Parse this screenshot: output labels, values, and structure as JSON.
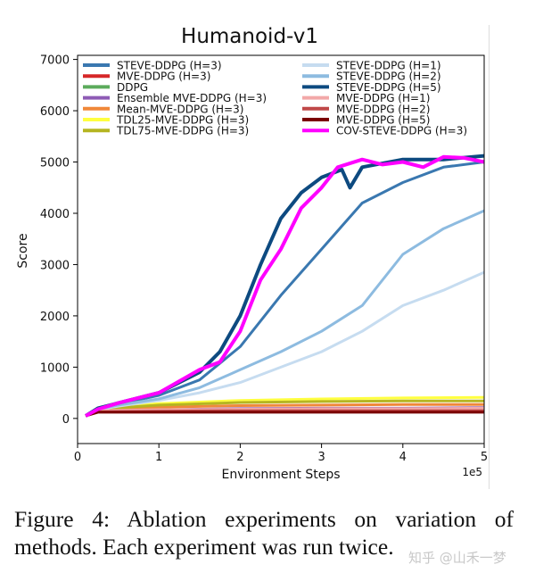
{
  "chart_data": {
    "type": "line",
    "title": "Humanoid-v1",
    "xlabel": "Environment Steps",
    "x_offset_label": "1e5",
    "ylabel": "Score",
    "xlim": [
      0,
      5
    ],
    "ylim": [
      -490,
      7080
    ],
    "xticks": [
      0,
      1,
      2,
      3,
      4,
      5
    ],
    "yticks": [
      0,
      1000,
      2000,
      3000,
      4000,
      5000,
      6000,
      7000
    ],
    "grid": false,
    "legend_placement": "top (two columns)",
    "series": [
      {
        "name": "STEVE-DDPG (H=3)",
        "color": "#3a78b0",
        "x": [
          0.1,
          0.25,
          0.5,
          1,
          1.5,
          2,
          2.5,
          3,
          3.5,
          4,
          4.5,
          5
        ],
        "y": [
          50,
          180,
          280,
          450,
          750,
          1400,
          2400,
          3300,
          4200,
          4600,
          4900,
          5000
        ]
      },
      {
        "name": "MVE-DDPG (H=3)",
        "color": "#d62728",
        "x": [
          0.1,
          0.25,
          1,
          2,
          3,
          4,
          5
        ],
        "y": [
          50,
          140,
          150,
          160,
          165,
          165,
          170
        ]
      },
      {
        "name": "DDPG",
        "color": "#5cab5c",
        "x": [
          0.1,
          0.25,
          1,
          2,
          3,
          4,
          5
        ],
        "y": [
          50,
          130,
          140,
          150,
          150,
          140,
          150
        ]
      },
      {
        "name": "Ensemble MVE-DDPG (H=3)",
        "color": "#8e5bb5",
        "x": [
          0.1,
          0.25,
          1,
          2,
          3,
          4,
          5
        ],
        "y": [
          50,
          150,
          170,
          190,
          200,
          200,
          210
        ]
      },
      {
        "name": "Mean-MVE-DDPG (H=3)",
        "color": "#f0883a",
        "x": [
          0.1,
          0.25,
          1,
          2,
          3,
          4,
          5
        ],
        "y": [
          50,
          160,
          220,
          250,
          260,
          270,
          270
        ]
      },
      {
        "name": "TDL25-MVE-DDPG (H=3)",
        "color": "#ffff40",
        "x": [
          0.1,
          0.25,
          1,
          2,
          3,
          4,
          5
        ],
        "y": [
          50,
          200,
          290,
          350,
          380,
          400,
          410
        ]
      },
      {
        "name": "TDL75-MVE-DDPG (H=3)",
        "color": "#b5b522",
        "x": [
          0.1,
          0.25,
          1,
          2,
          3,
          4,
          5
        ],
        "y": [
          50,
          180,
          260,
          310,
          330,
          340,
          340
        ]
      },
      {
        "name": "STEVE-DDPG (H=1)",
        "color": "#c6dcf0",
        "x": [
          0.1,
          0.25,
          0.5,
          1,
          1.5,
          2,
          2.5,
          3,
          3.5,
          4,
          4.5,
          5
        ],
        "y": [
          50,
          170,
          240,
          350,
          500,
          700,
          1000,
          1300,
          1700,
          2200,
          2500,
          2850
        ]
      },
      {
        "name": "STEVE-DDPG (H=2)",
        "color": "#8dbbe0",
        "x": [
          0.1,
          0.25,
          0.5,
          1,
          1.5,
          2,
          2.5,
          3,
          3.5,
          4,
          4.5,
          5
        ],
        "y": [
          50,
          180,
          260,
          380,
          600,
          950,
          1300,
          1700,
          2200,
          3200,
          3700,
          4050
        ]
      },
      {
        "name": "STEVE-DDPG (H=5)",
        "color": "#0d4a80",
        "x": [
          0.1,
          0.25,
          0.5,
          1,
          1.5,
          1.75,
          2,
          2.25,
          2.5,
          2.75,
          3,
          3.25,
          3.35,
          3.5,
          4,
          4.5,
          5
        ],
        "y": [
          50,
          200,
          300,
          500,
          900,
          1300,
          2000,
          3000,
          3900,
          4400,
          4700,
          4850,
          4500,
          4900,
          5050,
          5050,
          5120
        ]
      },
      {
        "name": "MVE-DDPG (H=1)",
        "color": "#f2a8a8",
        "x": [
          0.1,
          0.25,
          1,
          2,
          3,
          4,
          5
        ],
        "y": [
          50,
          150,
          170,
          180,
          190,
          190,
          200
        ]
      },
      {
        "name": "MVE-DDPG (H=2)",
        "color": "#c04848",
        "x": [
          0.1,
          0.25,
          1,
          2,
          3,
          4,
          5
        ],
        "y": [
          50,
          130,
          140,
          150,
          150,
          150,
          150
        ]
      },
      {
        "name": "MVE-DDPG (H=5)",
        "color": "#7a0000",
        "x": [
          0.1,
          0.25,
          1,
          2,
          3,
          4,
          5
        ],
        "y": [
          50,
          120,
          120,
          120,
          120,
          120,
          120
        ]
      },
      {
        "name": "COV-STEVE-DDPG (H=3)",
        "color": "#ff00ff",
        "x": [
          0.1,
          0.25,
          0.5,
          1,
          1.5,
          1.75,
          2,
          2.25,
          2.5,
          2.75,
          3,
          3.2,
          3.5,
          3.75,
          4,
          4.25,
          4.5,
          4.75,
          5
        ],
        "y": [
          50,
          180,
          300,
          500,
          950,
          1100,
          1700,
          2700,
          3300,
          4100,
          4500,
          4900,
          5050,
          4950,
          5000,
          4900,
          5100,
          5080,
          5000
        ]
      }
    ]
  },
  "caption": "Figure 4:  Ablation experiments on variation of methods. Each experiment was run twice.",
  "watermark": "知乎 @山禾一梦"
}
